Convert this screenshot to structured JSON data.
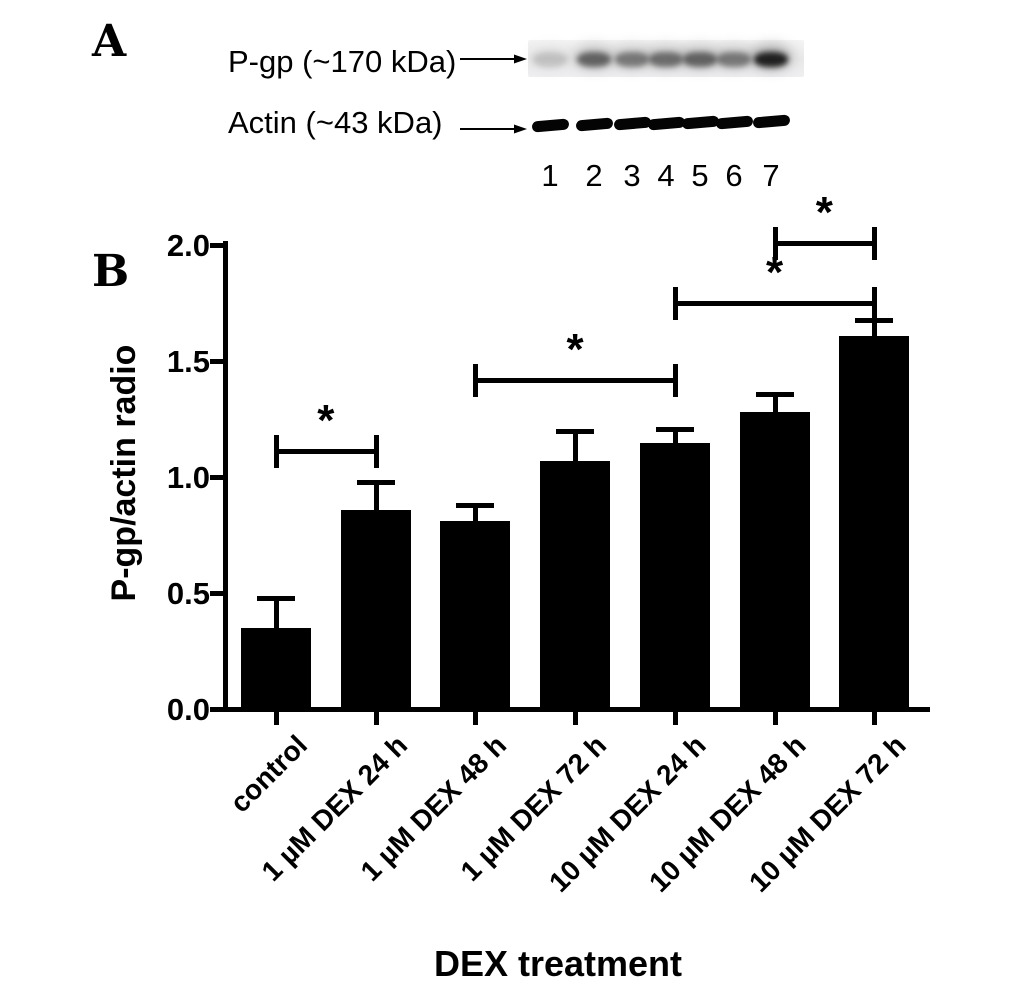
{
  "figure": {
    "background": "#ffffff",
    "ink_color": "#000000"
  },
  "panel_a": {
    "label": "A",
    "pgp_label": "P-gp (~170 kDa)",
    "actin_label": "Actin (~43 kDa)",
    "pgp_arrow_icon": "right-arrow",
    "actin_arrow_icon": "right-arrow",
    "lanes": [
      "1",
      "2",
      "3",
      "4",
      "5",
      "6",
      "7"
    ],
    "pgp_band_intensities": [
      0.15,
      0.55,
      0.45,
      0.5,
      0.55,
      0.45,
      0.9
    ]
  },
  "panel_b": {
    "label": "B"
  },
  "chart_data": {
    "type": "bar",
    "title": "",
    "xlabel": "DEX treatment",
    "ylabel": "P-gp/actin radio",
    "categories": [
      "control",
      "1 µM DEX 24 h",
      "1 µM DEX 48 h",
      "1 µM DEX 72 h",
      "10 µM DEX 24 h",
      "10 µM DEX 48 h",
      "10 µM DEX 72 h"
    ],
    "values": [
      0.34,
      0.85,
      0.8,
      1.06,
      1.14,
      1.27,
      1.6
    ],
    "errors": [
      0.12,
      0.11,
      0.06,
      0.12,
      0.05,
      0.07,
      0.06
    ],
    "error_bar_style": "upper SE with T-cap",
    "bar_color": "#000000",
    "background": "#ffffff",
    "ylim": [
      0,
      2.0
    ],
    "yticks": [
      0,
      0.5,
      1.0,
      1.5,
      2.0
    ],
    "ytick_labels": [
      "0.0",
      "0.5",
      "1.0",
      "1.5",
      "2.0"
    ],
    "grid": false,
    "legend": null,
    "significance_brackets": [
      {
        "from": 0,
        "to": 1,
        "from_category": "control",
        "to_category": "1 µM DEX 24 h",
        "level": 1.11,
        "label": "*"
      },
      {
        "from": 2,
        "to": 4,
        "from_category": "1 µM DEX 48 h",
        "to_category": "10 µM DEX 24 h",
        "level": 1.42,
        "label": "*"
      },
      {
        "from": 4,
        "to": 6,
        "from_category": "10 µM DEX 24 h",
        "to_category": "10 µM DEX 72 h",
        "level": 1.75,
        "label": "*"
      },
      {
        "from": 5,
        "to": 6,
        "from_category": "10 µM DEX 48 h",
        "to_category": "10 µM DEX 72 h",
        "level": 2.01,
        "label": "*"
      }
    ]
  }
}
